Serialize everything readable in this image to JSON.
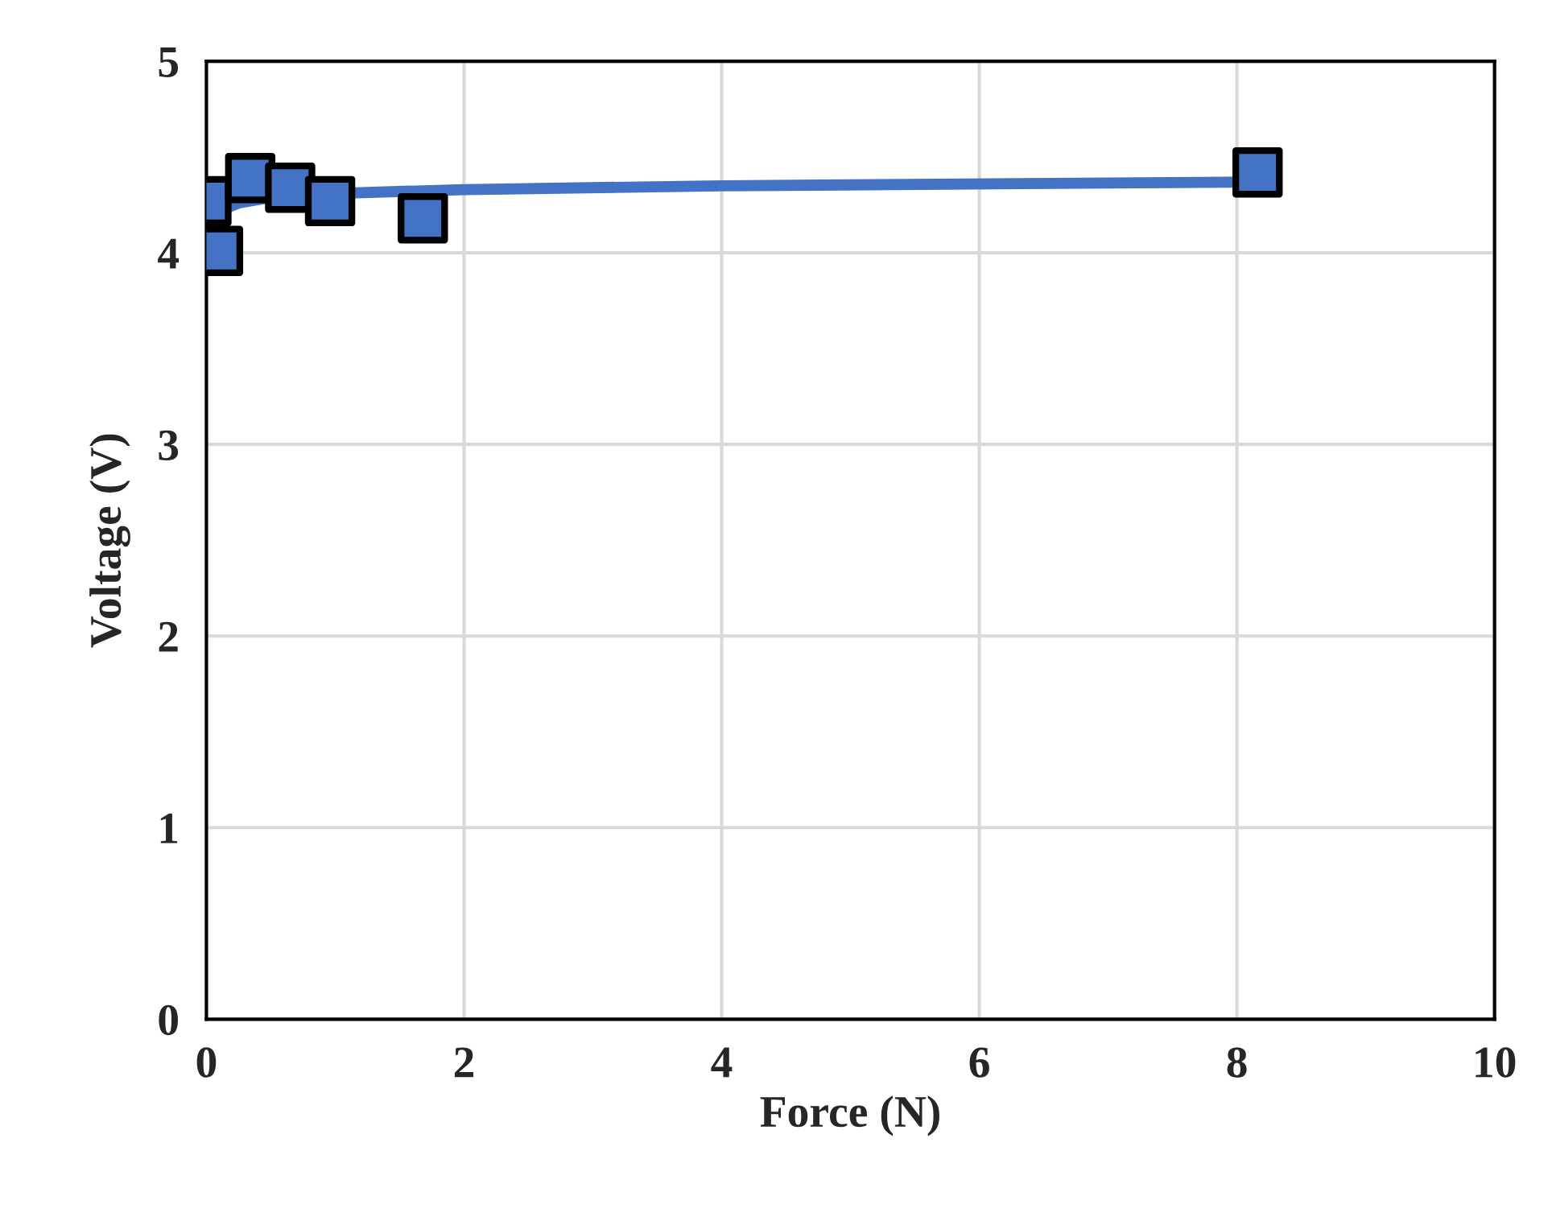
{
  "chart_data": {
    "type": "scatter",
    "xlabel": "Force (N)",
    "ylabel": "Voltage (V)",
    "xlim": [
      0,
      10
    ],
    "ylim": [
      0,
      5
    ],
    "xticks": [
      0,
      2,
      4,
      6,
      8,
      10
    ],
    "yticks": [
      0,
      1,
      2,
      3,
      4,
      5
    ],
    "grid": true,
    "legend": false,
    "series": [
      {
        "marker": "square",
        "color": "#4472c4",
        "x": [
          0.0,
          0.09,
          0.34,
          0.65,
          0.96,
          1.68,
          8.16
        ],
        "values": [
          4.27,
          4.01,
          4.39,
          4.34,
          4.27,
          4.18,
          4.42
        ]
      },
      {
        "type": "line",
        "color": "#4472c4",
        "line_style": "solid",
        "x": [
          0.03,
          0.1,
          0.25,
          0.5,
          1,
          2,
          4,
          8.16
        ],
        "values": [
          4.15,
          4.22,
          4.26,
          4.29,
          4.31,
          4.33,
          4.35,
          4.37
        ]
      }
    ]
  }
}
